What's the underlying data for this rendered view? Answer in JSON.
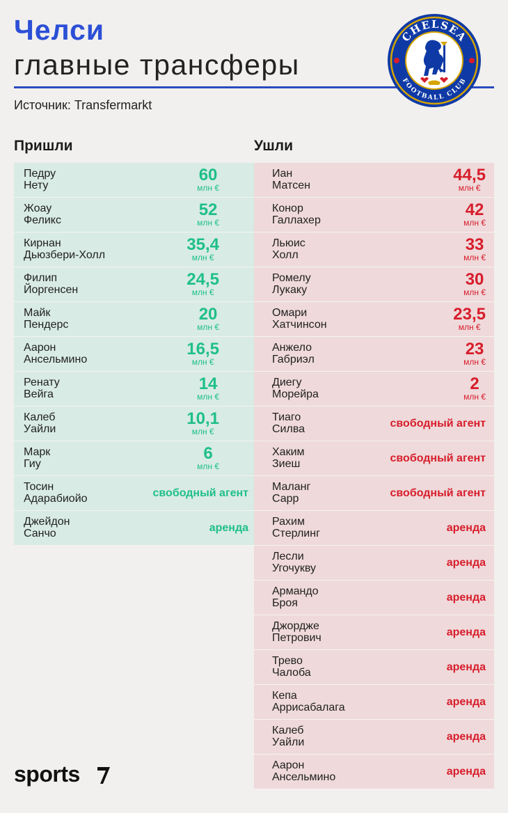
{
  "header": {
    "title": "Челси",
    "subtitle": "главные трансферы",
    "source": "Источник: Transfermarkt"
  },
  "logo": {
    "top_text": "CHELSEA",
    "bottom_text": "FOOTBALL CLUB",
    "icon": "chelsea-lion-crest",
    "colors": {
      "blue": "#0f3aa6",
      "gold": "#d6a400",
      "red": "#d71d2b"
    }
  },
  "incoming": {
    "heading": "Пришли",
    "rows": [
      {
        "first": "Педру",
        "last": "Нету",
        "fee": "60",
        "unit": "млн €"
      },
      {
        "first": "Жоау",
        "last": "Феликс",
        "fee": "52",
        "unit": "млн €"
      },
      {
        "first": "Кирнан",
        "last": "Дьюзбери-Холл",
        "fee": "35,4",
        "unit": "млн €"
      },
      {
        "first": "Филип",
        "last": "Йоргенсен",
        "fee": "24,5",
        "unit": "млн €"
      },
      {
        "first": "Майк",
        "last": "Пендерс",
        "fee": "20",
        "unit": "млн €"
      },
      {
        "first": "Аарон",
        "last": "Ансельмино",
        "fee": "16,5",
        "unit": "млн €"
      },
      {
        "first": "Ренату",
        "last": "Вейга",
        "fee": "14",
        "unit": "млн €"
      },
      {
        "first": "Калеб",
        "last": "Уайли",
        "fee": "10,1",
        "unit": "млн €"
      },
      {
        "first": "Марк",
        "last": "Гиу",
        "fee": "6",
        "unit": "млн €"
      },
      {
        "first": "Тосин",
        "last": "Адарабиойо",
        "tag": "свободный агент"
      },
      {
        "first": "Джейдон",
        "last": "Санчо",
        "tag": "аренда"
      }
    ]
  },
  "outgoing": {
    "heading": "Ушли",
    "rows": [
      {
        "first": "Иан",
        "last": "Матсен",
        "fee": "44,5",
        "unit": "млн €"
      },
      {
        "first": "Конор",
        "last": "Галлахер",
        "fee": "42",
        "unit": "млн €"
      },
      {
        "first": "Льюис",
        "last": "Холл",
        "fee": "33",
        "unit": "млн €"
      },
      {
        "first": "Ромелу",
        "last": "Лукаку",
        "fee": "30",
        "unit": "млн €"
      },
      {
        "first": "Омари",
        "last": "Хатчинсон",
        "fee": "23,5",
        "unit": "млн €"
      },
      {
        "first": "Анжело",
        "last": "Габриэл",
        "fee": "23",
        "unit": "млн €"
      },
      {
        "first": "Диегу",
        "last": "Морейра",
        "fee": "2",
        "unit": "млн €"
      },
      {
        "first": "Тиаго",
        "last": "Силва",
        "tag": "свободный агент"
      },
      {
        "first": "Хаким",
        "last": "Зиеш",
        "tag": "свободный агент"
      },
      {
        "first": "Маланг",
        "last": "Сарр",
        "tag": "свободный агент"
      },
      {
        "first": "Рахим",
        "last": "Стерлинг",
        "tag": "аренда"
      },
      {
        "first": "Лесли",
        "last": "Угочукву",
        "tag": "аренда"
      },
      {
        "first": "Армандо",
        "last": "Броя",
        "tag": "аренда"
      },
      {
        "first": "Джордже",
        "last": "Петрович",
        "tag": "аренда"
      },
      {
        "first": "Трево",
        "last": "Чалоба",
        "tag": "аренда"
      },
      {
        "first": "Кепа",
        "last": "Аррисабалага",
        "tag": "аренда"
      },
      {
        "first": "Калеб",
        "last": "Уайли",
        "tag": "аренда"
      },
      {
        "first": "Аарон",
        "last": "Ансельмино",
        "tag": "аренда"
      }
    ]
  },
  "footer": {
    "brand": "sports",
    "brand_icon": "sports-slash-mark-icon"
  }
}
